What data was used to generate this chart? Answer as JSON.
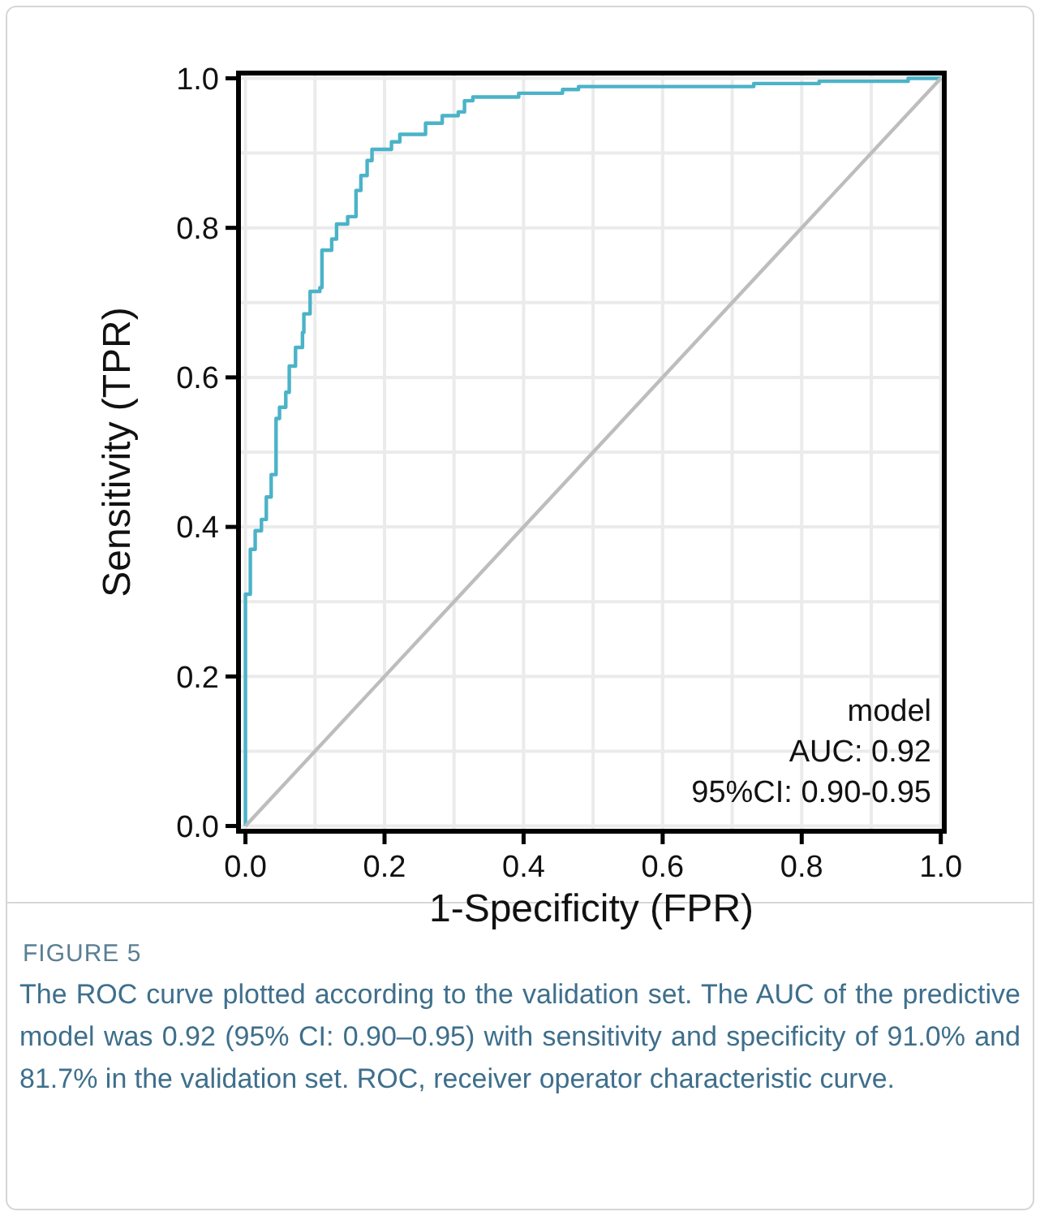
{
  "chart_data": {
    "type": "step",
    "xlabel": "1-Specificity (FPR)",
    "ylabel": "Sensitivity (TPR)",
    "xlim": [
      -0.01,
      1.005
    ],
    "ylim": [
      -0.007,
      1.007
    ],
    "xticks": [
      {
        "value": 0,
        "label": "0.0"
      },
      {
        "value": 0.1,
        "label": null
      },
      {
        "value": 0.2,
        "label": "0.2"
      },
      {
        "value": 0.3,
        "label": null
      },
      {
        "value": 0.4,
        "label": "0.4"
      },
      {
        "value": 0.5,
        "label": null
      },
      {
        "value": 0.6,
        "label": "0.6"
      },
      {
        "value": 0.7,
        "label": null
      },
      {
        "value": 0.8,
        "label": "0.8"
      },
      {
        "value": 0.9,
        "label": null
      },
      {
        "value": 1,
        "label": "1.0"
      }
    ],
    "yticks": [
      {
        "value": 0,
        "label": "0.0"
      },
      {
        "value": 0.1,
        "label": null
      },
      {
        "value": 0.2,
        "label": "0.2"
      },
      {
        "value": 0.3,
        "label": null
      },
      {
        "value": 0.4,
        "label": "0.4"
      },
      {
        "value": 0.5,
        "label": null
      },
      {
        "value": 0.6,
        "label": "0.6"
      },
      {
        "value": 0.7,
        "label": null
      },
      {
        "value": 0.8,
        "label": "0.8"
      },
      {
        "value": 0.9,
        "label": null
      },
      {
        "value": 1,
        "label": "1.0"
      }
    ],
    "grid": true,
    "series": [
      {
        "color": "#4bb3c8",
        "x": [
          0,
          0,
          0.007,
          0.014,
          0.023,
          0.03,
          0.037,
          0.044,
          0.049,
          0.058,
          0.063,
          0.072,
          0.082,
          0.084,
          0.093,
          0.107,
          0.11,
          0.124,
          0.131,
          0.147,
          0.159,
          0.166,
          0.175,
          0.182,
          0.21,
          0.222,
          0.259,
          0.283,
          0.306,
          0.315,
          0.327,
          0.393,
          0.456,
          0.479,
          0.731,
          0.825,
          0.953,
          1
        ],
        "values": [
          0,
          0.31,
          0.37,
          0.395,
          0.41,
          0.44,
          0.47,
          0.545,
          0.56,
          0.58,
          0.615,
          0.64,
          0.66,
          0.685,
          0.715,
          0.72,
          0.77,
          0.785,
          0.805,
          0.815,
          0.85,
          0.87,
          0.89,
          0.905,
          0.915,
          0.925,
          0.94,
          0.95,
          0.955,
          0.97,
          0.975,
          0.98,
          0.985,
          0.989,
          0.993,
          0.996,
          1,
          1
        ]
      },
      {
        "type": "line",
        "color": "#bdbdbd",
        "x": [
          0,
          1
        ],
        "values": [
          0,
          1
        ]
      }
    ],
    "annotations": [
      "model",
      "AUC: 0.92",
      "95%CI: 0.90-0.95",
      "FIGURE 5",
      "The ROC curve plotted according to the validation set. The AUC of the predictive model was 0.92 (95% CI: 0.90–0.95) with sensitivity and specificity of 91.0% and 81.7% in the validation set. ROC, receiver operator characteristic curve."
    ]
  }
}
